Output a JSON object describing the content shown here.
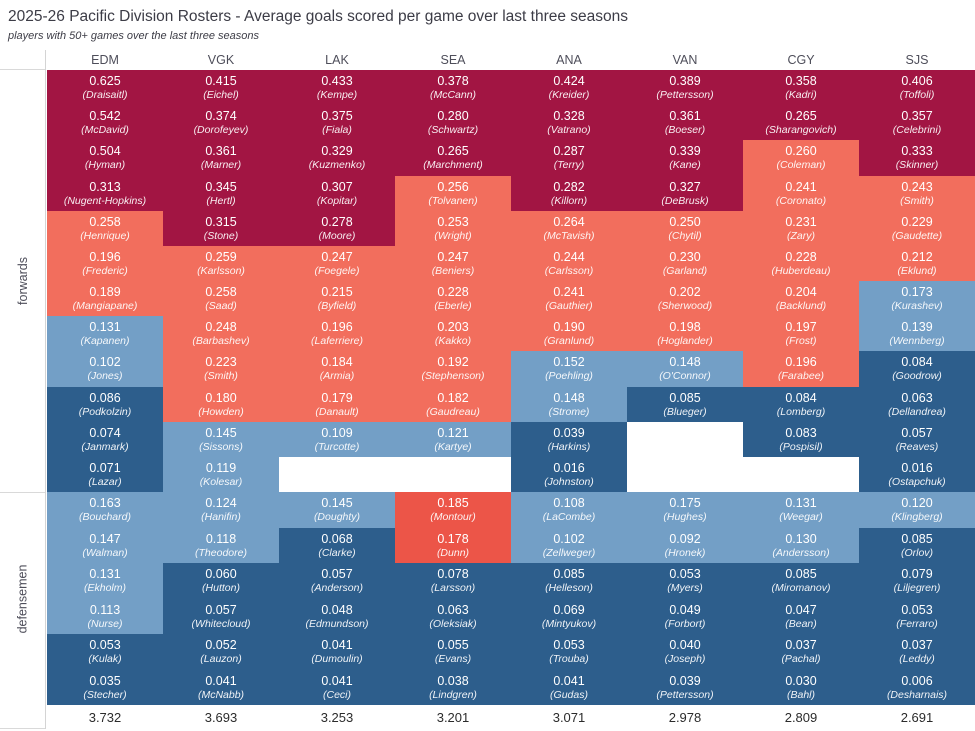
{
  "chart_data": {
    "type": "heatmap",
    "title": "2025-26 Pacific Division Rosters - Average goals scored per game over last three seasons",
    "subtitle": "players with 50+ games over the last three seasons",
    "value_description": "average goals scored per game",
    "columns": [
      "EDM",
      "VGK",
      "LAK",
      "SEA",
      "ANA",
      "VAN",
      "CGY",
      "SJS"
    ],
    "palette": {
      "c1": "#a21543",
      "c2": "#f26e5d",
      "c3": "#ec5548",
      "c4": "#739fc6",
      "c5": "#2d5e8c"
    },
    "palette_meaning": {
      "c1": "dark-red-high",
      "c2": "salmon-mid-high",
      "c3": "red-mid",
      "c4": "light-blue-mid-low",
      "c5": "dark-blue-low"
    },
    "row_groups": [
      {
        "label": "forwards",
        "num_rows": 12,
        "teams": [
          [
            [
              "0.625",
              "(Draisaitl)",
              "c1"
            ],
            [
              "0.542",
              "(McDavid)",
              "c1"
            ],
            [
              "0.504",
              "(Hyman)",
              "c1"
            ],
            [
              "0.313",
              "(Nugent-Hopkins)",
              "c1"
            ],
            [
              "0.258",
              "(Henrique)",
              "c2"
            ],
            [
              "0.196",
              "(Frederic)",
              "c2"
            ],
            [
              "0.189",
              "(Mangiapane)",
              "c2"
            ],
            [
              "0.131",
              "(Kapanen)",
              "c4"
            ],
            [
              "0.102",
              "(Jones)",
              "c4"
            ],
            [
              "0.086",
              "(Podkolzin)",
              "c5"
            ],
            [
              "0.074",
              "(Janmark)",
              "c5"
            ],
            [
              "0.071",
              "(Lazar)",
              "c5"
            ]
          ],
          [
            [
              "0.415",
              "(Eichel)",
              "c1"
            ],
            [
              "0.374",
              "(Dorofeyev)",
              "c1"
            ],
            [
              "0.361",
              "(Marner)",
              "c1"
            ],
            [
              "0.345",
              "(Hertl)",
              "c1"
            ],
            [
              "0.315",
              "(Stone)",
              "c1"
            ],
            [
              "0.259",
              "(Karlsson)",
              "c2"
            ],
            [
              "0.258",
              "(Saad)",
              "c2"
            ],
            [
              "0.248",
              "(Barbashev)",
              "c2"
            ],
            [
              "0.223",
              "(Smith)",
              "c2"
            ],
            [
              "0.180",
              "(Howden)",
              "c2"
            ],
            [
              "0.145",
              "(Sissons)",
              "c4"
            ],
            [
              "0.119",
              "(Kolesar)",
              "c4"
            ]
          ],
          [
            [
              "0.433",
              "(Kempe)",
              "c1"
            ],
            [
              "0.375",
              "(Fiala)",
              "c1"
            ],
            [
              "0.329",
              "(Kuzmenko)",
              "c1"
            ],
            [
              "0.307",
              "(Kopitar)",
              "c1"
            ],
            [
              "0.278",
              "(Moore)",
              "c1"
            ],
            [
              "0.247",
              "(Foegele)",
              "c2"
            ],
            [
              "0.215",
              "(Byfield)",
              "c2"
            ],
            [
              "0.196",
              "(Laferriere)",
              "c2"
            ],
            [
              "0.184",
              "(Armia)",
              "c2"
            ],
            [
              "0.179",
              "(Danault)",
              "c2"
            ],
            [
              "0.109",
              "(Turcotte)",
              "c4"
            ],
            null
          ],
          [
            [
              "0.378",
              "(McCann)",
              "c1"
            ],
            [
              "0.280",
              "(Schwartz)",
              "c1"
            ],
            [
              "0.265",
              "(Marchment)",
              "c1"
            ],
            [
              "0.256",
              "(Tolvanen)",
              "c2"
            ],
            [
              "0.253",
              "(Wright)",
              "c2"
            ],
            [
              "0.247",
              "(Beniers)",
              "c2"
            ],
            [
              "0.228",
              "(Eberle)",
              "c2"
            ],
            [
              "0.203",
              "(Kakko)",
              "c2"
            ],
            [
              "0.192",
              "(Stephenson)",
              "c2"
            ],
            [
              "0.182",
              "(Gaudreau)",
              "c2"
            ],
            [
              "0.121",
              "(Kartye)",
              "c4"
            ],
            null
          ],
          [
            [
              "0.424",
              "(Kreider)",
              "c1"
            ],
            [
              "0.328",
              "(Vatrano)",
              "c1"
            ],
            [
              "0.287",
              "(Terry)",
              "c1"
            ],
            [
              "0.282",
              "(Killorn)",
              "c1"
            ],
            [
              "0.264",
              "(McTavish)",
              "c2"
            ],
            [
              "0.244",
              "(Carlsson)",
              "c2"
            ],
            [
              "0.241",
              "(Gauthier)",
              "c2"
            ],
            [
              "0.190",
              "(Granlund)",
              "c2"
            ],
            [
              "0.152",
              "(Poehling)",
              "c4"
            ],
            [
              "0.148",
              "(Strome)",
              "c4"
            ],
            [
              "0.039",
              "(Harkins)",
              "c5"
            ],
            [
              "0.016",
              "(Johnston)",
              "c5"
            ]
          ],
          [
            [
              "0.389",
              "(Pettersson)",
              "c1"
            ],
            [
              "0.361",
              "(Boeser)",
              "c1"
            ],
            [
              "0.339",
              "(Kane)",
              "c1"
            ],
            [
              "0.327",
              "(DeBrusk)",
              "c1"
            ],
            [
              "0.250",
              "(Chytil)",
              "c2"
            ],
            [
              "0.230",
              "(Garland)",
              "c2"
            ],
            [
              "0.202",
              "(Sherwood)",
              "c2"
            ],
            [
              "0.198",
              "(Hoglander)",
              "c2"
            ],
            [
              "0.148",
              "(O'Connor)",
              "c4"
            ],
            [
              "0.085",
              "(Blueger)",
              "c5"
            ],
            null,
            null
          ],
          [
            [
              "0.358",
              "(Kadri)",
              "c1"
            ],
            [
              "0.265",
              "(Sharangovich)",
              "c1"
            ],
            [
              "0.260",
              "(Coleman)",
              "c2"
            ],
            [
              "0.241",
              "(Coronato)",
              "c2"
            ],
            [
              "0.231",
              "(Zary)",
              "c2"
            ],
            [
              "0.228",
              "(Huberdeau)",
              "c2"
            ],
            [
              "0.204",
              "(Backlund)",
              "c2"
            ],
            [
              "0.197",
              "(Frost)",
              "c2"
            ],
            [
              "0.196",
              "(Farabee)",
              "c2"
            ],
            [
              "0.084",
              "(Lomberg)",
              "c5"
            ],
            [
              "0.083",
              "(Pospisil)",
              "c5"
            ],
            null
          ],
          [
            [
              "0.406",
              "(Toffoli)",
              "c1"
            ],
            [
              "0.357",
              "(Celebrini)",
              "c1"
            ],
            [
              "0.333",
              "(Skinner)",
              "c1"
            ],
            [
              "0.243",
              "(Smith)",
              "c2"
            ],
            [
              "0.229",
              "(Gaudette)",
              "c2"
            ],
            [
              "0.212",
              "(Eklund)",
              "c2"
            ],
            [
              "0.173",
              "(Kurashev)",
              "c4"
            ],
            [
              "0.139",
              "(Wennberg)",
              "c4"
            ],
            [
              "0.084",
              "(Goodrow)",
              "c5"
            ],
            [
              "0.063",
              "(Dellandrea)",
              "c5"
            ],
            [
              "0.057",
              "(Reaves)",
              "c5"
            ],
            [
              "0.016",
              "(Ostapchuk)",
              "c5"
            ]
          ]
        ]
      },
      {
        "label": "defensemen",
        "num_rows": 6,
        "teams": [
          [
            [
              "0.163",
              "(Bouchard)",
              "c4"
            ],
            [
              "0.147",
              "(Walman)",
              "c4"
            ],
            [
              "0.131",
              "(Ekholm)",
              "c4"
            ],
            [
              "0.113",
              "(Nurse)",
              "c4"
            ],
            [
              "0.053",
              "(Kulak)",
              "c5"
            ],
            [
              "0.035",
              "(Stecher)",
              "c5"
            ]
          ],
          [
            [
              "0.124",
              "(Hanifin)",
              "c4"
            ],
            [
              "0.118",
              "(Theodore)",
              "c4"
            ],
            [
              "0.060",
              "(Hutton)",
              "c5"
            ],
            [
              "0.057",
              "(Whitecloud)",
              "c5"
            ],
            [
              "0.052",
              "(Lauzon)",
              "c5"
            ],
            [
              "0.041",
              "(McNabb)",
              "c5"
            ]
          ],
          [
            [
              "0.145",
              "(Doughty)",
              "c4"
            ],
            [
              "0.068",
              "(Clarke)",
              "c5"
            ],
            [
              "0.057",
              "(Anderson)",
              "c5"
            ],
            [
              "0.048",
              "(Edmundson)",
              "c5"
            ],
            [
              "0.041",
              "(Dumoulin)",
              "c5"
            ],
            [
              "0.041",
              "(Ceci)",
              "c5"
            ]
          ],
          [
            [
              "0.185",
              "(Montour)",
              "c3"
            ],
            [
              "0.178",
              "(Dunn)",
              "c3"
            ],
            [
              "0.078",
              "(Larsson)",
              "c5"
            ],
            [
              "0.063",
              "(Oleksiak)",
              "c5"
            ],
            [
              "0.055",
              "(Evans)",
              "c5"
            ],
            [
              "0.038",
              "(Lindgren)",
              "c5"
            ]
          ],
          [
            [
              "0.108",
              "(LaCombe)",
              "c4"
            ],
            [
              "0.102",
              "(Zellweger)",
              "c4"
            ],
            [
              "0.085",
              "(Helleson)",
              "c5"
            ],
            [
              "0.069",
              "(Mintyukov)",
              "c5"
            ],
            [
              "0.053",
              "(Trouba)",
              "c5"
            ],
            [
              "0.041",
              "(Gudas)",
              "c5"
            ]
          ],
          [
            [
              "0.175",
              "(Hughes)",
              "c4"
            ],
            [
              "0.092",
              "(Hronek)",
              "c4"
            ],
            [
              "0.053",
              "(Myers)",
              "c5"
            ],
            [
              "0.049",
              "(Forbort)",
              "c5"
            ],
            [
              "0.040",
              "(Joseph)",
              "c5"
            ],
            [
              "0.039",
              "(Pettersson)",
              "c5"
            ]
          ],
          [
            [
              "0.131",
              "(Weegar)",
              "c4"
            ],
            [
              "0.130",
              "(Andersson)",
              "c4"
            ],
            [
              "0.085",
              "(Miromanov)",
              "c5"
            ],
            [
              "0.047",
              "(Bean)",
              "c5"
            ],
            [
              "0.037",
              "(Pachal)",
              "c5"
            ],
            [
              "0.030",
              "(Bahl)",
              "c5"
            ]
          ],
          [
            [
              "0.120",
              "(Klingberg)",
              "c4"
            ],
            [
              "0.085",
              "(Orlov)",
              "c5"
            ],
            [
              "0.079",
              "(Liljegren)",
              "c5"
            ],
            [
              "0.053",
              "(Ferraro)",
              "c5"
            ],
            [
              "0.037",
              "(Leddy)",
              "c5"
            ],
            [
              "0.006",
              "(Desharnais)",
              "c5"
            ]
          ]
        ]
      }
    ],
    "totals": [
      "3.732",
      "3.693",
      "3.253",
      "3.201",
      "3.071",
      "2.978",
      "2.809",
      "2.691"
    ],
    "layout_hints": {
      "legend": "none",
      "grid": "off",
      "column_header_position": "top",
      "row_group_label_position": "left-rotated",
      "totals_position": "bottom"
    }
  }
}
